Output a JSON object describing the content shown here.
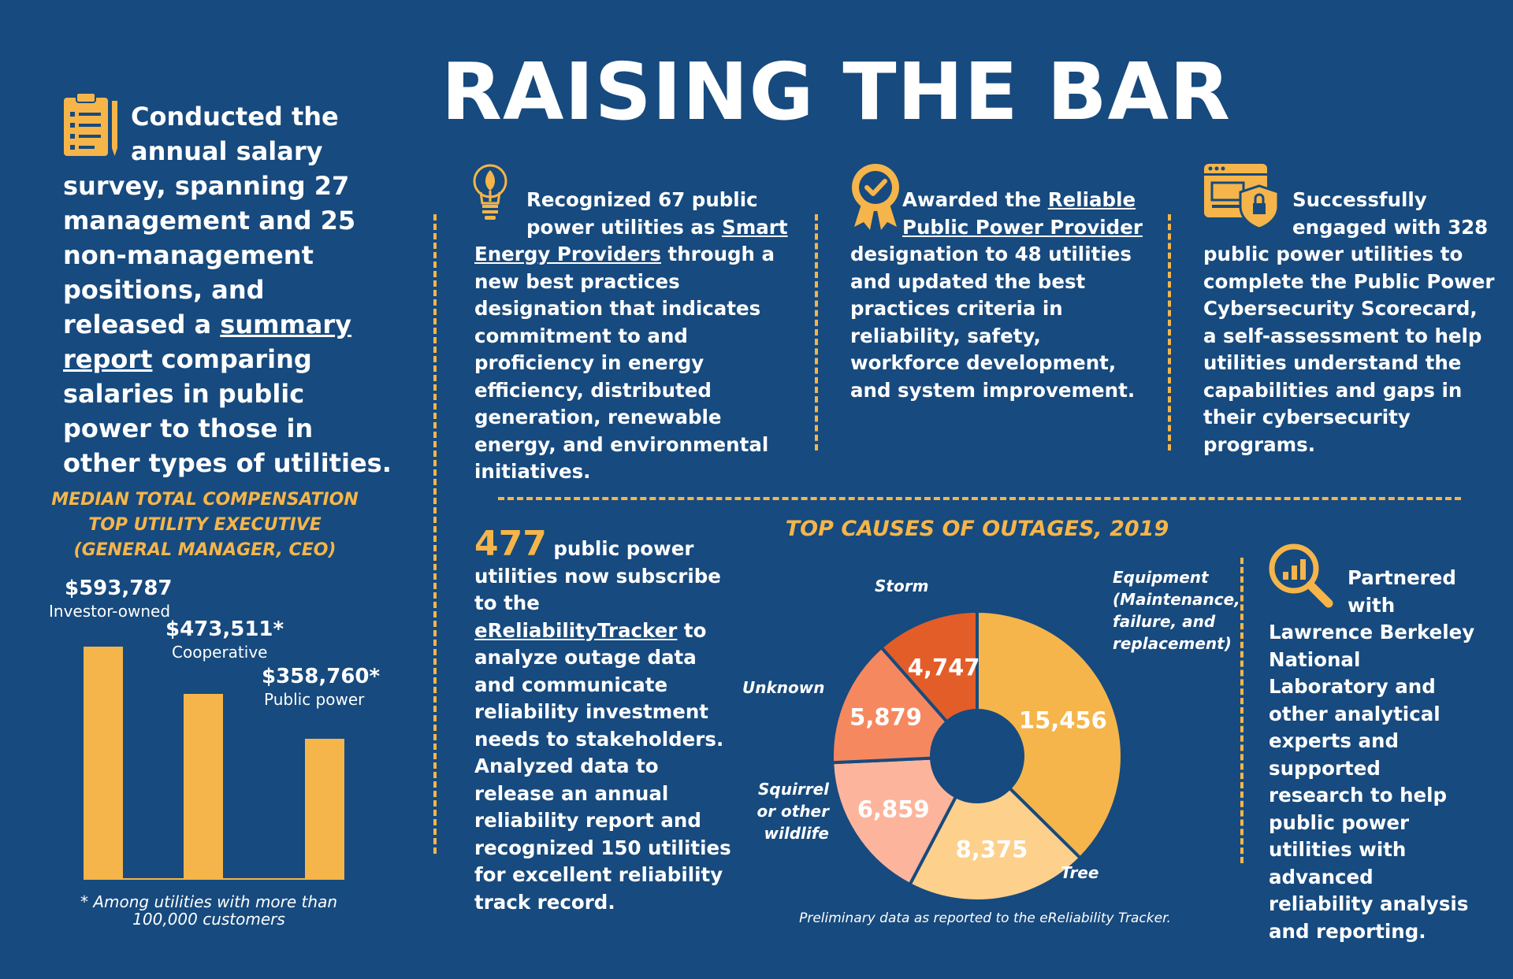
{
  "header": {
    "title": "RAISING THE BAR"
  },
  "intro": {
    "line1": "Conducted the",
    "line2": "annual salary",
    "rest_before": "survey, spanning 27 management and 25 non-management positions, and released a ",
    "link": "summary report",
    "rest_after": " comparing salaries in public power to those in other types of utilities."
  },
  "compensation": {
    "title_line1": "MEDIAN TOTAL COMPENSATION",
    "title_line2": "TOP UTILITY EXECUTIVE",
    "title_line3": "(GENERAL MANAGER, CEO)",
    "footnote": "* Among utilities with more than 100,000 customers"
  },
  "chart_data": [
    {
      "type": "bar",
      "title": "MEDIAN TOTAL COMPENSATION TOP UTILITY EXECUTIVE (GENERAL MANAGER, CEO)",
      "categories": [
        "Investor-owned",
        "Cooperative",
        "Public power"
      ],
      "values": [
        593787,
        473511,
        358760
      ],
      "value_labels": [
        "$593,787",
        "$473,511*",
        "$358,760*"
      ],
      "ylim": [
        0,
        593787
      ],
      "color": "#f5b54a",
      "grid": false
    },
    {
      "type": "pie",
      "title": "TOP CAUSES OF OUTAGES, 2019",
      "categories": [
        "Equipment (Maintenance, failure, and replacement)",
        "Tree",
        "Squirrel or other wildlife",
        "Unknown",
        "Storm"
      ],
      "values": [
        15456,
        8375,
        6859,
        5879,
        4747
      ],
      "value_labels": [
        "15,456",
        "8,375",
        "6,859",
        "5,879",
        "4,747"
      ],
      "colors": [
        "#f5b54a",
        "#fdd08c",
        "#fcb59c",
        "#f6885f",
        "#e35d28"
      ],
      "note": "Preliminary data as reported to the eReliability Tracker."
    }
  ],
  "cards": {
    "smart": {
      "l1": "Recognized 67 public",
      "l2a": "power utilities as ",
      "l2b": "Smart",
      "l3a": "Energy Providers",
      "rest": " through a new best practices designation that indicates commitment to and proficiency in energy efficiency, distributed generation, renewable energy, and environmental initiatives."
    },
    "reliable": {
      "l1a": "Awarded the ",
      "l1b": "Reliable",
      "l2": "Public Power Provider",
      "rest": "designation to 48 utilities and updated the best practices criteria in reliability, safety, workforce development, and system improvement."
    },
    "cyber": {
      "l1": "Successfully",
      "l2": "engaged with 328",
      "rest": "public power utilities to complete the Public Power Cybersecurity Scorecard, a self-assessment to help utilities understand the capabilities and gaps in their cybersecurity programs."
    },
    "tracker": {
      "number": "477",
      "after_number": " public power utilities now subscribe to the ",
      "link": "eReliabilityTracker",
      "rest": " to analyze outage data and communicate reliability investment needs to stakeholders. Analyzed data to release an annual reliability report and recognized 150 utilities for excellent reliability track record."
    },
    "lbnl": {
      "l1": "Partnered",
      "l2": "with",
      "rest": "Lawrence Berkeley National Laboratory and other analytical experts and supported research to help public power utilities with advanced reliability analysis and reporting."
    }
  },
  "donut_labels": {
    "equipment_1": "Equipment",
    "equipment_2": "(Maintenance,",
    "equipment_3": "failure, and",
    "equipment_4": "replacement)",
    "tree": "Tree",
    "squirrel_1": "Squirrel",
    "squirrel_2": "or other",
    "squirrel_3": "wildlife",
    "unknown": "Unknown",
    "storm": "Storm"
  },
  "icons": [
    "clipboard-icon",
    "lightbulb-icon",
    "award-ribbon-icon",
    "cyber-shield-icon",
    "magnifier-chart-icon"
  ]
}
